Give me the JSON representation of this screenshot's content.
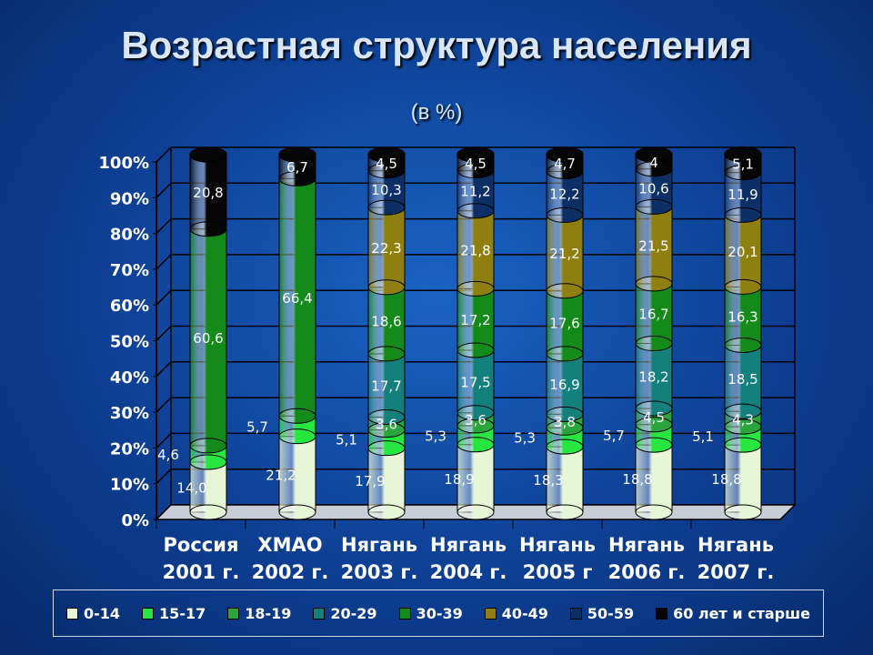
{
  "title": "Возрастная структура  населения",
  "subtitle": "(в %)",
  "chart_data": {
    "type": "bar",
    "stacked": true,
    "percent": true,
    "yticks": [
      "0%",
      "10%",
      "20%",
      "30%",
      "40%",
      "50%",
      "60%",
      "70%",
      "80%",
      "90%",
      "100%"
    ],
    "ylim": [
      0,
      100
    ],
    "categories": [
      {
        "line1": "Россия",
        "line2": "2001 г."
      },
      {
        "line1": "ХМАО",
        "line2": "2002 г."
      },
      {
        "line1": "Нягань",
        "line2": "2003 г."
      },
      {
        "line1": "Нягань",
        "line2": "2004 г."
      },
      {
        "line1": "Нягань",
        "line2": "2005 г"
      },
      {
        "line1": "Нягань",
        "line2": "2006 г."
      },
      {
        "line1": "Нягань",
        "line2": "2007 г."
      }
    ],
    "series": [
      {
        "name": "0-14",
        "color": "#e7f6d6",
        "values": [
          14.0,
          21.2,
          17.9,
          18.9,
          18.3,
          18.8,
          18.8
        ]
      },
      {
        "name": "15-17",
        "color": "#27e640",
        "values": [
          4.6,
          5.7,
          5.1,
          5.3,
          5.3,
          5.7,
          5.1
        ]
      },
      {
        "name": "18-19",
        "color": "#2aa53c",
        "values": [
          null,
          null,
          3.6,
          3.6,
          3.8,
          4.5,
          4.3
        ]
      },
      {
        "name": "20-29",
        "color": "#13807c",
        "values": [
          null,
          null,
          17.7,
          17.5,
          16.9,
          18.2,
          18.5
        ]
      },
      {
        "name": "30-39",
        "color": "#138a1a",
        "values": [
          60.6,
          66.4,
          18.6,
          17.2,
          17.6,
          16.7,
          16.3
        ]
      },
      {
        "name": "40-49",
        "color": "#8f7f10",
        "values": [
          null,
          null,
          22.3,
          21.8,
          21.2,
          21.5,
          20.1
        ]
      },
      {
        "name": "50-59",
        "color": "#0c2f66",
        "values": [
          null,
          null,
          10.3,
          11.2,
          12.2,
          10.6,
          11.9
        ]
      },
      {
        "name": "60 лет и старше",
        "color": "#050505",
        "values": [
          20.8,
          6.7,
          4.5,
          4.5,
          4.7,
          4.0,
          5.1
        ]
      }
    ],
    "data_labels": [
      [
        "14,0",
        "4,6",
        "",
        "",
        "60,6",
        "",
        "",
        "20,8"
      ],
      [
        "21,2",
        "5,7",
        "",
        "",
        "66,4",
        "",
        "",
        "6,7"
      ],
      [
        "17,9",
        "5,1",
        "3,6",
        "17,7",
        "18,6",
        "22,3",
        "10,3",
        "4,5"
      ],
      [
        "18,9",
        "5,3",
        "3,6",
        "17,5",
        "17,2",
        "21,8",
        "11,2",
        "4,5"
      ],
      [
        "18,3",
        "5,3",
        "3,8",
        "16,9",
        "17,6",
        "21,2",
        "12,2",
        "4,7"
      ],
      [
        "18,8",
        "5,7",
        "4,5",
        "18,2",
        "16,7",
        "21,5",
        "10,6",
        "4"
      ],
      [
        "18,8",
        "5,1",
        "4,3",
        "18,5",
        "16,3",
        "20,1",
        "11,9",
        "5,1"
      ]
    ],
    "legend_position": "bottom",
    "grid": true
  },
  "colors": {
    "background": "#0d3f93",
    "title": "#d8e6f7",
    "axis_text": "#ffffff"
  }
}
